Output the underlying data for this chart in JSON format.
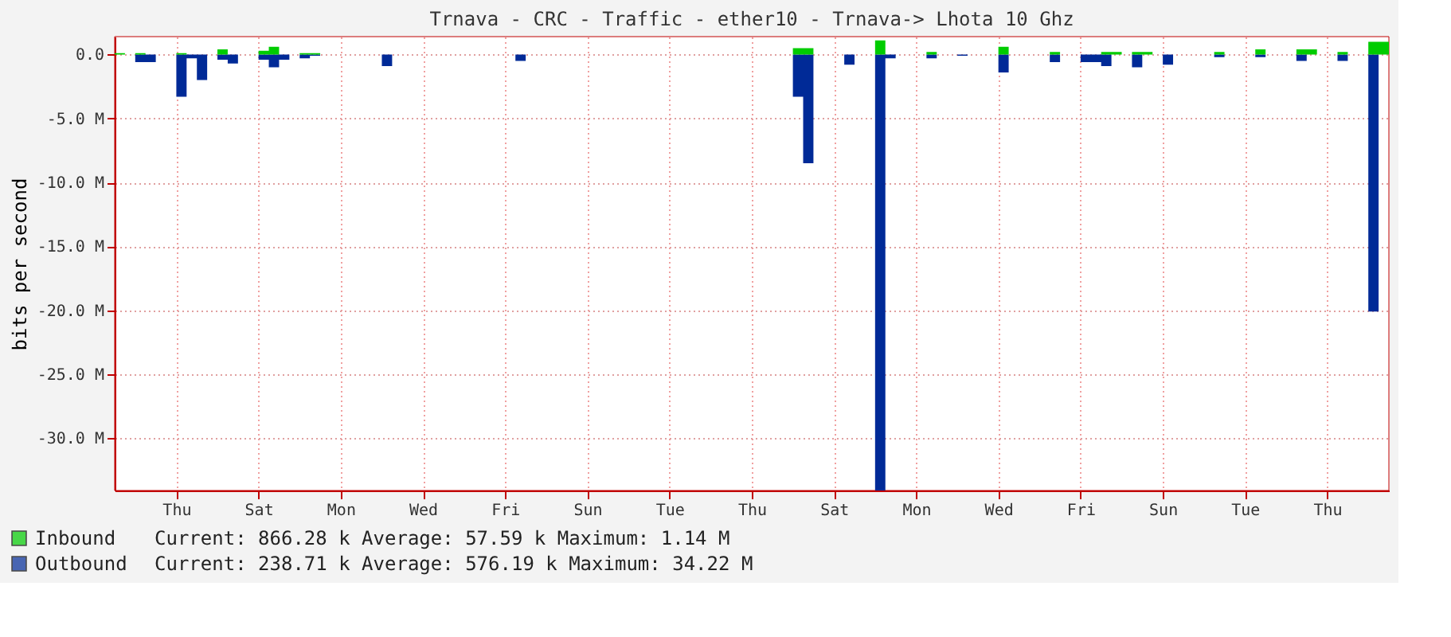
{
  "chart_data": {
    "type": "area",
    "title": "Trnava - CRC - Traffic - ether10 - Trnava-> Lhota 10 Ghz",
    "ylabel": "bits per second",
    "categories": [
      null,
      null,
      null,
      null,
      null,
      null,
      "Thu",
      null,
      null,
      null,
      null,
      null,
      null,
      null,
      "Sat",
      null,
      null,
      null,
      null,
      null,
      null,
      null,
      "Mon",
      null,
      null,
      null,
      null,
      null,
      null,
      null,
      "Wed",
      null,
      null,
      null,
      null,
      null,
      null,
      null,
      "Fri",
      null,
      null,
      null,
      null,
      null,
      null,
      null,
      "Sun",
      null,
      null,
      null,
      null,
      null,
      null,
      null,
      "Tue",
      null,
      null,
      null,
      null,
      null,
      null,
      null,
      "Thu",
      null,
      null,
      null,
      null,
      null,
      null,
      null,
      "Sat",
      null,
      null,
      null,
      null,
      null,
      null,
      null,
      "Mon",
      null,
      null,
      null,
      null,
      null,
      null,
      null,
      "Wed",
      null,
      null,
      null,
      null,
      null,
      null,
      null,
      "Fri",
      null,
      null,
      null,
      null,
      null,
      null,
      null,
      "Sun",
      null,
      null,
      null,
      null,
      null,
      null,
      null,
      "Tue",
      null,
      null,
      null,
      null,
      null,
      null,
      null,
      "Thu",
      null,
      null,
      null,
      null,
      null,
      null
    ],
    "series": [
      {
        "name": "Outbound",
        "color": "#002a97",
        "values": [
          0,
          0,
          -0.6,
          -0.6,
          0,
          0,
          -3.3,
          -0.3,
          -2.0,
          0,
          -0.4,
          -0.7,
          0,
          0,
          -0.4,
          -1.0,
          -0.4,
          0,
          -0.3,
          -0.1,
          0,
          0,
          0,
          0,
          0,
          0,
          -0.9,
          0,
          0,
          0,
          0,
          0,
          0,
          0,
          0,
          0,
          0,
          0,
          0,
          -0.5,
          0,
          0,
          0,
          0,
          0,
          0,
          0,
          0,
          0,
          0,
          0,
          0,
          0,
          0,
          0,
          0,
          0,
          0,
          0,
          0,
          0,
          0,
          0,
          0,
          0,
          0,
          -3.3,
          -8.5,
          0,
          0,
          0,
          -0.8,
          0,
          0,
          -34.1,
          -0.3,
          0,
          0,
          0,
          -0.3,
          0,
          0,
          -0.1,
          0,
          0,
          0,
          -1.4,
          0,
          0,
          0,
          0,
          -0.6,
          0,
          0,
          -0.6,
          -0.6,
          -0.9,
          0,
          0,
          -1.0,
          0,
          0,
          -0.8,
          0,
          0,
          0,
          0,
          -0.2,
          0,
          0,
          0,
          -0.2,
          0,
          0,
          0,
          -0.5,
          0,
          0,
          0,
          -0.5,
          0,
          0,
          -20.1,
          0,
          0
        ]
      },
      {
        "name": "Inbound",
        "color": "#00cc00",
        "values": [
          0.1,
          0,
          0.1,
          0,
          0,
          0,
          0.1,
          0,
          0,
          0,
          0.4,
          0,
          0,
          0,
          0.3,
          0.6,
          0,
          0,
          0.1,
          0.1,
          0,
          0,
          0,
          0,
          0,
          0,
          0,
          0,
          0,
          0,
          0,
          0,
          0,
          0,
          0,
          0,
          0,
          0,
          0,
          0,
          0,
          0,
          0,
          0,
          0,
          0,
          0,
          0,
          0,
          0,
          0,
          0,
          0,
          0,
          0,
          0,
          0,
          0,
          0,
          0,
          0,
          0,
          0,
          0,
          0,
          0,
          0.5,
          0.5,
          0,
          0,
          0,
          0,
          0,
          0,
          1.1,
          0,
          0,
          0,
          0,
          0.2,
          0,
          0,
          0,
          0,
          0,
          0,
          0.6,
          0,
          0,
          0,
          0,
          0.2,
          0,
          0,
          0,
          0,
          0.2,
          0.2,
          0,
          0.2,
          0.2,
          0,
          0,
          0,
          0,
          0,
          0,
          0.2,
          0,
          0,
          0,
          0.4,
          0,
          0,
          0,
          0.4,
          0.4,
          0,
          0,
          0.2,
          0,
          0,
          1.0,
          1.0,
          0
        ]
      }
    ],
    "annotations": [
      "Current:   238.71 k   Average:   576.19 k   Maximum:   34.22 M",
      "Current:   866.28 k   Average:    57.59 k   Maximum:    1.14 M"
    ],
    "ylim": [
      -34.1,
      1.4
    ],
    "yticks": [
      {
        "value": 0,
        "label": "0.0"
      },
      {
        "value": -5,
        "label": "-5.0 M"
      },
      {
        "value": -10,
        "label": "-10.0 M"
      },
      {
        "value": -15,
        "label": "-15.0 M"
      },
      {
        "value": -20,
        "label": "-20.0 M"
      },
      {
        "value": -25,
        "label": "-25.0 M"
      },
      {
        "value": -30,
        "label": "-30.0 M"
      }
    ],
    "grid": true,
    "legend": "bottom"
  }
}
